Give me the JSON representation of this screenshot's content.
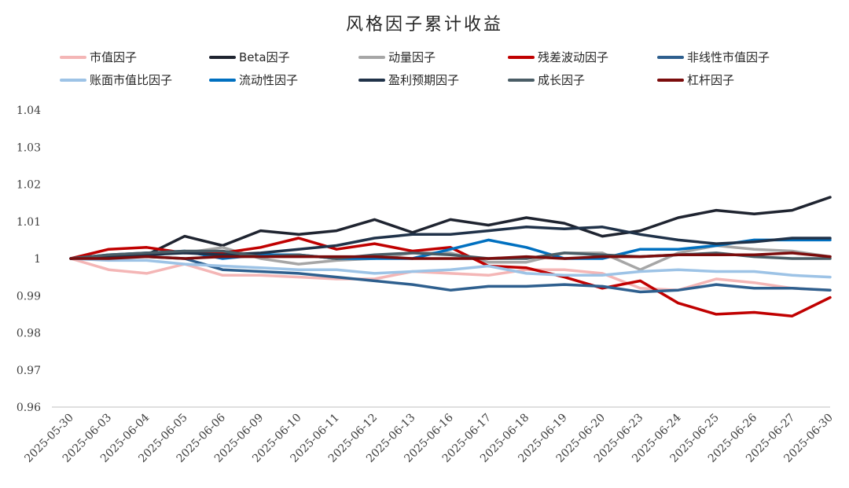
{
  "chart_data": {
    "type": "line",
    "title": "风格因子累计收益",
    "xlabel": "",
    "ylabel": "",
    "ylim": [
      0.96,
      1.04
    ],
    "yticks": [
      "0.96",
      "0.97",
      "0.98",
      "0.99",
      "1",
      "1.01",
      "1.02",
      "1.03",
      "1.04"
    ],
    "grid": false,
    "legend": "top",
    "x": [
      "2025-05-30",
      "2025-06-03",
      "2025-06-04",
      "2025-06-05",
      "2025-06-06",
      "2025-06-09",
      "2025-06-10",
      "2025-06-11",
      "2025-06-12",
      "2025-06-13",
      "2025-06-16",
      "2025-06-17",
      "2025-06-18",
      "2025-06-19",
      "2025-06-20",
      "2025-06-23",
      "2025-06-24",
      "2025-06-25",
      "2025-06-26",
      "2025-06-27",
      "2025-06-30"
    ],
    "series": [
      {
        "name": "市值因子",
        "color": "#f4b6b6",
        "values": [
          1.0,
          0.997,
          0.996,
          0.9985,
          0.9955,
          0.9955,
          0.995,
          0.9945,
          0.9945,
          0.9965,
          0.996,
          0.9955,
          0.997,
          0.997,
          0.996,
          0.992,
          0.9915,
          0.9945,
          0.9935,
          0.992,
          0.9915
        ]
      },
      {
        "name": "Beta因子",
        "color": "#1f2430",
        "values": [
          1.0,
          1.0005,
          1.001,
          1.006,
          1.0035,
          1.0075,
          1.0065,
          1.0075,
          1.0105,
          1.007,
          1.0105,
          1.009,
          1.011,
          1.0095,
          1.006,
          1.0075,
          1.011,
          1.013,
          1.012,
          1.013,
          1.0165
        ]
      },
      {
        "name": "动量因子",
        "color": "#a6a6a6",
        "values": [
          1.0,
          1.0005,
          1.0015,
          1.0015,
          1.003,
          1.0,
          0.9985,
          0.9995,
          1.0,
          1.0015,
          1.0015,
          0.999,
          0.999,
          1.0015,
          1.0015,
          0.997,
          1.0015,
          1.0035,
          1.0025,
          1.002,
          1.0005
        ]
      },
      {
        "name": "残差波动因子",
        "color": "#c00000",
        "values": [
          1.0,
          1.0025,
          1.003,
          1.0015,
          1.0015,
          1.003,
          1.0055,
          1.0025,
          1.004,
          1.002,
          1.003,
          0.998,
          0.9975,
          0.995,
          0.992,
          0.994,
          0.988,
          0.985,
          0.9855,
          0.9845,
          0.9895
        ]
      },
      {
        "name": "非线性市值因子",
        "color": "#2e5f8e",
        "values": [
          1.0,
          1.0005,
          1.0005,
          1.0,
          0.997,
          0.9965,
          0.996,
          0.995,
          0.994,
          0.993,
          0.9915,
          0.9925,
          0.9925,
          0.993,
          0.9925,
          0.991,
          0.9915,
          0.993,
          0.992,
          0.992,
          0.9915
        ]
      },
      {
        "name": "账面市值比因子",
        "color": "#9dc3e6",
        "values": [
          1.0,
          0.9995,
          0.9995,
          0.9985,
          0.998,
          0.9975,
          0.997,
          0.997,
          0.996,
          0.9965,
          0.997,
          0.998,
          0.996,
          0.9955,
          0.9955,
          0.9965,
          0.997,
          0.9965,
          0.9965,
          0.9955,
          0.995
        ]
      },
      {
        "name": "流动性因子",
        "color": "#0070c0",
        "values": [
          1.0,
          1.001,
          1.0015,
          1.002,
          1.0,
          1.001,
          1.001,
          1.0,
          1.0,
          1.0,
          1.0025,
          1.005,
          1.003,
          1.0,
          1.0,
          1.0025,
          1.0025,
          1.0035,
          1.005,
          1.005,
          1.005
        ]
      },
      {
        "name": "盈利预期因子",
        "color": "#203249",
        "values": [
          1.0,
          1.0005,
          1.001,
          1.0015,
          1.001,
          1.0015,
          1.0025,
          1.0035,
          1.0055,
          1.0065,
          1.0065,
          1.0075,
          1.0085,
          1.008,
          1.0085,
          1.0065,
          1.005,
          1.004,
          1.0045,
          1.0055,
          1.0055
        ]
      },
      {
        "name": "成长因子",
        "color": "#4a5d66",
        "values": [
          1.0,
          1.001,
          1.0015,
          1.002,
          1.002,
          1.0005,
          1.001,
          1.0,
          1.001,
          1.0015,
          1.001,
          1.0,
          1.0,
          1.0015,
          1.001,
          1.0005,
          1.001,
          1.0015,
          1.0005,
          1.0,
          1.0
        ]
      },
      {
        "name": "杠杆因子",
        "color": "#7b0c0c",
        "values": [
          1.0,
          1.0,
          1.0005,
          1.0,
          1.0005,
          1.0005,
          1.0005,
          1.0005,
          1.0005,
          1.0,
          1.0,
          1.0,
          1.0005,
          1.0,
          1.0005,
          1.0005,
          1.001,
          1.001,
          1.001,
          1.0015,
          1.0005
        ]
      }
    ]
  }
}
